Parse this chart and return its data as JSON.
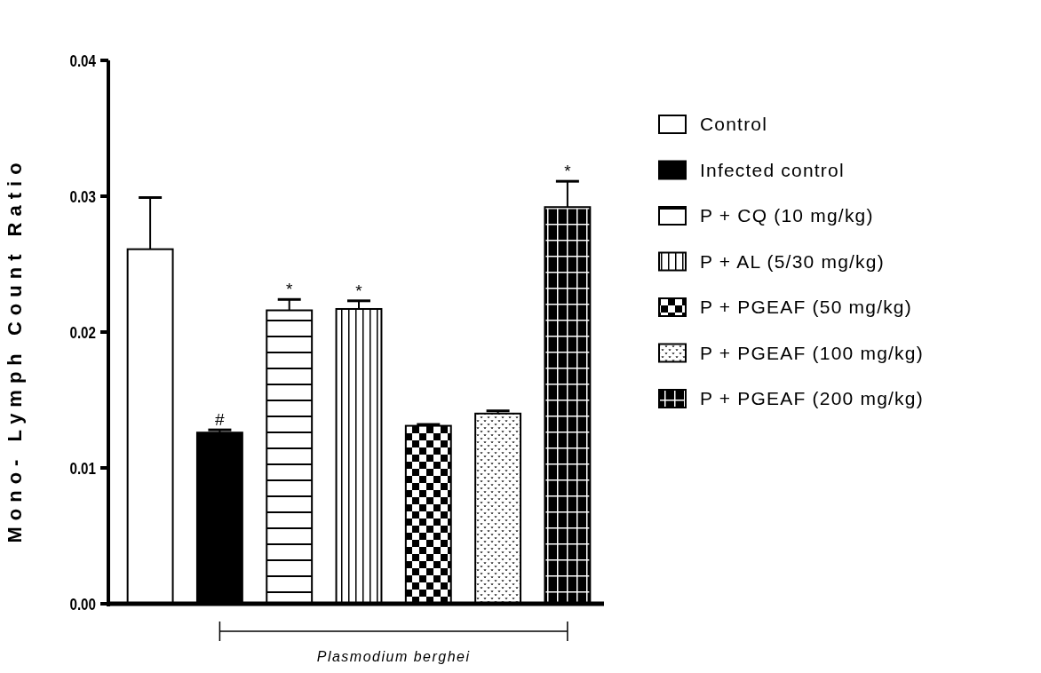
{
  "chart_data": {
    "type": "bar",
    "ylabel": "Mono- Lymph Count Ratio",
    "categories": [
      null,
      null,
      null,
      null,
      null,
      null,
      null
    ],
    "series": [
      {
        "name": "Control",
        "color": "#ffffff",
        "values": [
          0.0261,
          null,
          null,
          null,
          null,
          null,
          null
        ],
        "errors": [
          0.0038,
          null,
          null,
          null,
          null,
          null,
          null
        ]
      },
      {
        "name": "Infected control",
        "color": "#000000",
        "values": [
          null,
          0.0126,
          null,
          null,
          null,
          null,
          null
        ],
        "errors": [
          null,
          0.0002,
          null,
          null,
          null,
          null,
          null
        ]
      },
      {
        "name": "P + CQ (10 mg/kg)",
        "color": "#000000",
        "values": [
          null,
          null,
          0.0216,
          null,
          null,
          null,
          null
        ],
        "errors": [
          null,
          null,
          0.0008,
          null,
          null,
          null,
          null
        ]
      },
      {
        "name": "P + AL (5/30 mg/kg)",
        "color": "#000000",
        "values": [
          null,
          null,
          null,
          0.0217,
          null,
          null,
          null
        ],
        "errors": [
          null,
          null,
          null,
          0.0006,
          null,
          null,
          null
        ]
      },
      {
        "name": "P + PGEAF (50 mg/kg)",
        "color": "#000000",
        "values": [
          null,
          null,
          null,
          null,
          0.0131,
          null,
          null
        ],
        "errors": [
          null,
          null,
          null,
          null,
          0.0001,
          null,
          null
        ]
      },
      {
        "name": "P + PGEAF (100 mg/kg)",
        "color": "#000000",
        "values": [
          null,
          null,
          null,
          null,
          null,
          0.014,
          null
        ],
        "errors": [
          null,
          null,
          null,
          null,
          null,
          0.0002,
          null
        ]
      },
      {
        "name": "P + PGEAF (200 mg/kg)",
        "color": "#000000",
        "values": [
          null,
          null,
          null,
          null,
          null,
          null,
          0.0292
        ],
        "errors": [
          null,
          null,
          null,
          null,
          null,
          null,
          0.0019
        ]
      }
    ],
    "ylim": [
      0,
      0.04
    ],
    "yticks": [
      {
        "value": 0,
        "label": "0.00"
      },
      {
        "value": 0.01,
        "label": "0.01"
      },
      {
        "value": 0.02,
        "label": "0.02"
      },
      {
        "value": 0.03,
        "label": "0.03"
      },
      {
        "value": 0.04,
        "label": "0.04"
      }
    ],
    "tick_labels": "y",
    "legend": "right",
    "grid": false,
    "annotations": [
      {
        "text": "#",
        "y": 0.0128
      },
      {
        "text": "*",
        "y": 0.0224
      },
      {
        "text": "*",
        "y": 0.0223
      },
      {
        "text": "*",
        "y": 0.0311
      },
      "Plasmodium berghei"
    ]
  }
}
